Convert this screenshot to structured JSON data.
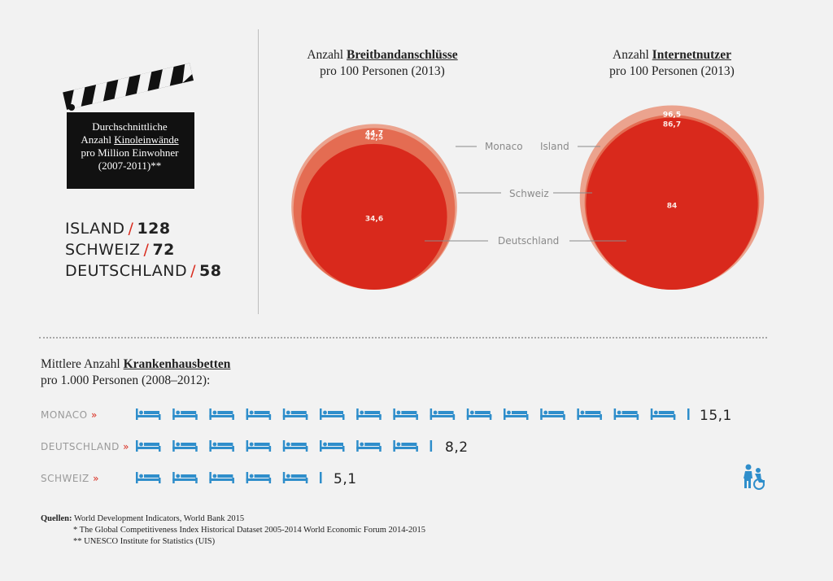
{
  "cinema": {
    "clap_lines": [
      "Durchschnittliche",
      "Anzahl",
      "Kinoleinwände",
      "pro Million Einwohner",
      "(2007-2011)**"
    ],
    "stats": [
      {
        "country": "ISLAND",
        "value": "128"
      },
      {
        "country": "SCHWEIZ",
        "value": "72"
      },
      {
        "country": "DEUTSCHLAND",
        "value": "58"
      }
    ]
  },
  "chart_data": [
    {
      "type": "bubble",
      "title_prefix": "Anzahl",
      "title_bold": "Breitbandanschlüsse",
      "subtitle": "pro 100 Personen (2013)",
      "series": [
        {
          "name": "Monaco",
          "value": 44.7,
          "label": "44,7",
          "color": "#eba38e"
        },
        {
          "name": "Schweiz",
          "value": 42.5,
          "label": "42,5",
          "color": "#e46c52"
        },
        {
          "name": "Deutschland",
          "value": 34.6,
          "label": "34,6",
          "color": "#d9291c"
        }
      ]
    },
    {
      "type": "bubble",
      "title_prefix": "Anzahl",
      "title_bold": "Internetnutzer",
      "subtitle": "pro 100 Personen (2013)",
      "series": [
        {
          "name": "Island",
          "value": 96.5,
          "label": "96,5",
          "color": "#eba38e"
        },
        {
          "name": "Schweiz",
          "value": 86.7,
          "label": "86,7",
          "color": "#e46c52"
        },
        {
          "name": "Deutschland",
          "value": 84,
          "label": "84",
          "color": "#d9291c"
        }
      ]
    },
    {
      "type": "pictogram",
      "title_prefix": "Mittlere Anzahl",
      "title_bold": "Krankenhausbetten",
      "subtitle": "pro 1.000 Personen (2008–2012):",
      "categories": [
        "MONACO",
        "DEUTSCHLAND",
        "SCHWEIZ"
      ],
      "values": [
        15.1,
        8.2,
        5.1
      ],
      "labels": [
        "15,1",
        "8,2",
        "5,1"
      ],
      "icon": "bed-icon",
      "icon_color": "#2f8ecb"
    }
  ],
  "labels": {
    "monaco": "Monaco",
    "island": "Island",
    "schweiz": "Schweiz",
    "deutschland": "Deutschland"
  },
  "sources": {
    "label": "Quellen:",
    "lines": [
      "World Development Indicators, World Bank 2015",
      "* The Global Competitiveness Index Historical Dataset 2005-2014 World Economic Forum 2014-2015",
      "** UNESCO Institute for Statistics (UIS)"
    ]
  }
}
